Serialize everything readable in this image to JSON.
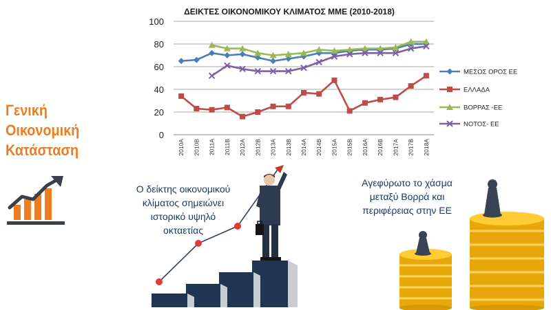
{
  "side": {
    "title_lines": [
      "Γενική",
      "Οικονομική",
      "Κατάσταση"
    ],
    "icon": "growth-chart-icon",
    "accent": "#ee7d22"
  },
  "captions": {
    "left": [
      "Ο δείκτης οικονομικού",
      "κλίματος σημειώνει",
      "ιστορικό υψηλό",
      "οκταετίας"
    ],
    "right": [
      "Αγεφύρωτο το χάσμα",
      "μεταξύ Βορρά και",
      "περιφέρειας στην ΕΕ"
    ]
  },
  "illustrations": {
    "left": "businessman-climbing-stairs",
    "right": "coin-stacks-with-pawns"
  },
  "chart_data": {
    "type": "line",
    "title": "ΔΕΙΚΤΕΣ ΟΙΚΟΝΟΜΙΚΟΥ ΚΛΙΜΑΤΟΣ ΜΜΕ (2010-2018)",
    "xlabel": "",
    "ylabel": "",
    "ylim": [
      0,
      100
    ],
    "yticks": [
      0,
      20,
      40,
      60,
      80,
      100
    ],
    "grid": true,
    "legend": "right",
    "categories": [
      "2010Α",
      "2010Β",
      "2011Α",
      "2011Β",
      "2012Α",
      "2012Β",
      "2013Α",
      "2013Β",
      "2014Α",
      "2014Β",
      "2015Α",
      "2015Β",
      "2016Α",
      "2016Β",
      "2017Α",
      "2017Β",
      "2018Α"
    ],
    "series": [
      {
        "name": "ΜΕΣΟΣ ΟΡΟΣ ΕΕ",
        "color": "#4a7ebb",
        "marker": "diamond",
        "values": [
          65,
          66,
          72,
          70,
          71,
          68,
          65,
          67,
          69,
          72,
          72,
          74,
          75,
          75,
          76,
          80,
          80
        ]
      },
      {
        "name": "ΕΛΛΑΔΑ",
        "color": "#be4b48",
        "marker": "square",
        "values": [
          34,
          23,
          22,
          24,
          16,
          20,
          25,
          25,
          37,
          36,
          48,
          21,
          28,
          31,
          33,
          43,
          52
        ]
      },
      {
        "name": "ΒΟΡΡΑΣ -ΕΕ",
        "color": "#98b954",
        "marker": "triangle",
        "values": [
          null,
          null,
          79,
          76,
          76,
          72,
          70,
          71,
          72,
          75,
          74,
          75,
          76,
          76,
          77,
          82,
          82
        ]
      },
      {
        "name": "ΝΟΤΟΣ- ΕΕ",
        "color": "#7d60a0",
        "marker": "x",
        "values": [
          null,
          null,
          52,
          61,
          58,
          56,
          56,
          56,
          59,
          64,
          69,
          71,
          72,
          72,
          72,
          76,
          78
        ]
      }
    ]
  }
}
